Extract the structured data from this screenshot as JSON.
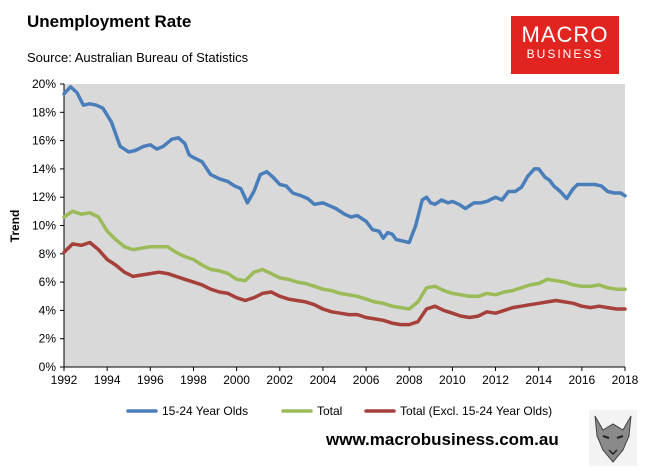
{
  "header": {
    "title": "Unemployment Rate",
    "source": "Source: Australian Bureau of Statistics"
  },
  "logo": {
    "top": "MACRO",
    "bottom": "BUSINESS"
  },
  "footer": {
    "url": "www.macrobusiness.com.au"
  },
  "colors": {
    "brand": "#e1241f",
    "plot_bg": "#d9d9d9",
    "series_blue": "#4a7ebb",
    "series_green": "#9bbb59",
    "series_red": "#a6403b"
  },
  "chart_data": {
    "type": "line",
    "title": "Unemployment Rate",
    "subtitle": "Source: Australian Bureau of Statistics",
    "ylabel": "Trend",
    "xlim": [
      1992,
      2018
    ],
    "ylim": [
      0,
      20
    ],
    "x_ticks": [
      "1992",
      "1994",
      "1996",
      "1998",
      "2000",
      "2002",
      "2004",
      "2006",
      "2008",
      "2010",
      "2012",
      "2014",
      "2016",
      "2018"
    ],
    "y_ticks": [
      "0%",
      "2%",
      "4%",
      "6%",
      "8%",
      "10%",
      "12%",
      "14%",
      "16%",
      "18%",
      "20%"
    ],
    "grid": false,
    "legend_position": "bottom",
    "series": [
      {
        "name": "15-24 Year Olds",
        "color": "#4a7ebb",
        "x": [
          1992,
          1992.3,
          1992.6,
          1992.9,
          1993.2,
          1993.5,
          1993.8,
          1994.2,
          1994.6,
          1995,
          1995.3,
          1995.7,
          1996,
          1996.3,
          1996.6,
          1997,
          1997.3,
          1997.6,
          1997.8,
          1998,
          1998.4,
          1998.8,
          1999.2,
          1999.6,
          1999.9,
          2000.2,
          2000.5,
          2000.8,
          2001.1,
          2001.4,
          2001.7,
          2002,
          2002.3,
          2002.6,
          2003,
          2003.3,
          2003.6,
          2004,
          2004.3,
          2004.6,
          2005,
          2005.3,
          2005.6,
          2006,
          2006.3,
          2006.6,
          2006.8,
          2007,
          2007.2,
          2007.4,
          2007.7,
          2008,
          2008.3,
          2008.6,
          2008.8,
          2009,
          2009.2,
          2009.5,
          2009.8,
          2010,
          2010.3,
          2010.6,
          2011,
          2011.3,
          2011.6,
          2012,
          2012.3,
          2012.6,
          2012.9,
          2013.2,
          2013.5,
          2013.8,
          2014,
          2014.3,
          2014.5,
          2014.7,
          2015,
          2015.3,
          2015.6,
          2015.8,
          2016,
          2016.3,
          2016.6,
          2016.9,
          2017.2,
          2017.5,
          2017.8,
          2018
        ],
        "values": [
          19.3,
          19.8,
          19.4,
          18.5,
          18.6,
          18.5,
          18.3,
          17.3,
          15.6,
          15.2,
          15.3,
          15.6,
          15.7,
          15.4,
          15.6,
          16.1,
          16.2,
          15.8,
          15.0,
          14.8,
          14.5,
          13.6,
          13.3,
          13.1,
          12.8,
          12.6,
          11.6,
          12.4,
          13.6,
          13.8,
          13.4,
          12.9,
          12.8,
          12.3,
          12.1,
          11.9,
          11.5,
          11.6,
          11.4,
          11.2,
          10.8,
          10.6,
          10.7,
          10.3,
          9.7,
          9.6,
          9.1,
          9.5,
          9.4,
          9.0,
          8.9,
          8.8,
          10.0,
          11.8,
          12.0,
          11.6,
          11.5,
          11.8,
          11.6,
          11.7,
          11.5,
          11.2,
          11.6,
          11.6,
          11.7,
          12.0,
          11.8,
          12.4,
          12.4,
          12.7,
          13.5,
          14.0,
          14.0,
          13.4,
          13.2,
          12.8,
          12.4,
          11.9,
          12.6,
          12.9,
          12.9,
          12.9,
          12.9,
          12.8,
          12.4,
          12.3,
          12.3,
          12.1
        ]
      },
      {
        "name": "Total",
        "color": "#9bbb59",
        "x": [
          1992,
          1992.4,
          1992.8,
          1993.2,
          1993.6,
          1994,
          1994.4,
          1994.8,
          1995.2,
          1995.6,
          1996,
          1996.4,
          1996.8,
          1997.2,
          1997.6,
          1998,
          1998.4,
          1998.8,
          1999.2,
          1999.6,
          2000,
          2000.4,
          2000.8,
          2001.2,
          2001.6,
          2002,
          2002.4,
          2002.8,
          2003.2,
          2003.6,
          2004,
          2004.4,
          2004.8,
          2005.2,
          2005.6,
          2006,
          2006.4,
          2006.8,
          2007.2,
          2007.6,
          2008,
          2008.4,
          2008.8,
          2009.2,
          2009.6,
          2010,
          2010.4,
          2010.8,
          2011.2,
          2011.6,
          2012,
          2012.4,
          2012.8,
          2013.2,
          2013.6,
          2014,
          2014.4,
          2014.8,
          2015.2,
          2015.6,
          2016,
          2016.4,
          2016.8,
          2017.2,
          2017.6,
          2018
        ],
        "values": [
          10.6,
          11.0,
          10.8,
          10.9,
          10.6,
          9.6,
          9.0,
          8.5,
          8.3,
          8.4,
          8.5,
          8.5,
          8.5,
          8.1,
          7.8,
          7.6,
          7.2,
          6.9,
          6.8,
          6.6,
          6.2,
          6.1,
          6.7,
          6.9,
          6.6,
          6.3,
          6.2,
          6.0,
          5.9,
          5.7,
          5.5,
          5.4,
          5.2,
          5.1,
          5.0,
          4.8,
          4.6,
          4.5,
          4.3,
          4.2,
          4.1,
          4.6,
          5.6,
          5.7,
          5.4,
          5.2,
          5.1,
          5.0,
          5.0,
          5.2,
          5.1,
          5.3,
          5.4,
          5.6,
          5.8,
          5.9,
          6.2,
          6.1,
          6.0,
          5.8,
          5.7,
          5.7,
          5.8,
          5.6,
          5.5,
          5.5
        ]
      },
      {
        "name": "Total (Excl. 15-24 Year Olds)",
        "color": "#a6403b",
        "x": [
          1992,
          1992.4,
          1992.8,
          1993.2,
          1993.6,
          1994,
          1994.4,
          1994.8,
          1995.2,
          1995.6,
          1996,
          1996.4,
          1996.8,
          1997.2,
          1997.6,
          1998,
          1998.4,
          1998.8,
          1999.2,
          1999.6,
          2000,
          2000.4,
          2000.8,
          2001.2,
          2001.6,
          2002,
          2002.4,
          2002.8,
          2003.2,
          2003.6,
          2004,
          2004.4,
          2004.8,
          2005.2,
          2005.6,
          2006,
          2006.4,
          2006.8,
          2007.2,
          2007.6,
          2008,
          2008.4,
          2008.8,
          2009.2,
          2009.6,
          2010,
          2010.4,
          2010.8,
          2011.2,
          2011.6,
          2012,
          2012.4,
          2012.8,
          2013.2,
          2013.6,
          2014,
          2014.4,
          2014.8,
          2015.2,
          2015.6,
          2016,
          2016.4,
          2016.8,
          2017.2,
          2017.6,
          2018
        ],
        "values": [
          8.1,
          8.7,
          8.6,
          8.8,
          8.3,
          7.6,
          7.2,
          6.7,
          6.4,
          6.5,
          6.6,
          6.7,
          6.6,
          6.4,
          6.2,
          6.0,
          5.8,
          5.5,
          5.3,
          5.2,
          4.9,
          4.7,
          4.9,
          5.2,
          5.3,
          5.0,
          4.8,
          4.7,
          4.6,
          4.4,
          4.1,
          3.9,
          3.8,
          3.7,
          3.7,
          3.5,
          3.4,
          3.3,
          3.1,
          3.0,
          3.0,
          3.2,
          4.1,
          4.3,
          4.0,
          3.8,
          3.6,
          3.5,
          3.6,
          3.9,
          3.8,
          4.0,
          4.2,
          4.3,
          4.4,
          4.5,
          4.6,
          4.7,
          4.6,
          4.5,
          4.3,
          4.2,
          4.3,
          4.2,
          4.1,
          4.1
        ]
      }
    ]
  }
}
